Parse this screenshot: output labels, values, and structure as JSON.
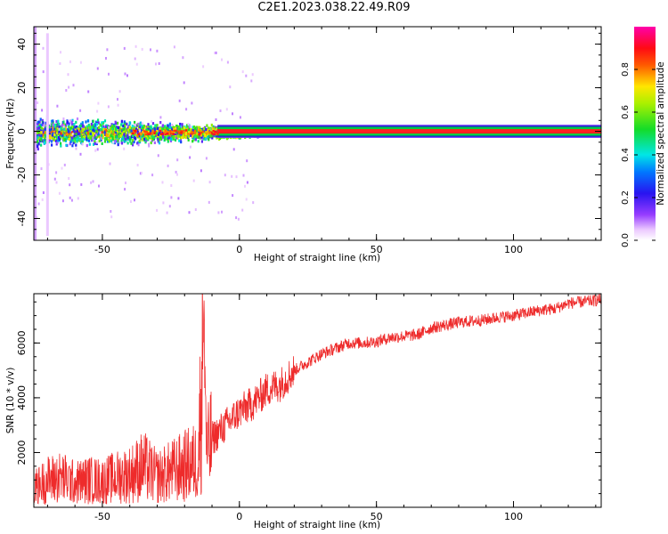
{
  "title": "C2E1.2023.038.22.49.R09",
  "colors": {
    "snr_line": "#ee2b2b",
    "signal_core": "#ff2020",
    "signal_band": "#00cc44"
  },
  "chart_data": [
    {
      "type": "heatmap",
      "name": "spectrogram",
      "xlabel": "Height of straight line (km)",
      "ylabel": "Frequency (Hz)",
      "xlim": [
        -75,
        132
      ],
      "ylim": [
        -50,
        48
      ],
      "xticks": [
        -50,
        0,
        50,
        100
      ],
      "yticks": [
        -40,
        -20,
        0,
        20,
        40
      ],
      "colorbar": {
        "label": "Normalized spectral amplitude",
        "range": [
          0,
          1
        ],
        "ticks": [
          "0.0",
          "0.2",
          "0.4",
          "0.6",
          "0.8"
        ],
        "colormap": "rainbow (white-magenta-blue-cyan-green-yellow-red-magenta)"
      },
      "signal": {
        "center_frequency_hz": 0,
        "core_width_hz": 2,
        "band_width_hz": 4,
        "scatter_region_km": [
          -75,
          12
        ],
        "scatter_spread_hz": [
          -12,
          12
        ]
      },
      "grid": false
    },
    {
      "type": "line",
      "name": "snr",
      "xlabel": "Height of straight line (km)",
      "ylabel": "SNR (10 * v/v)",
      "xlim": [
        -75,
        132
      ],
      "ylim": [
        0,
        7800
      ],
      "xticks": [
        -50,
        0,
        50,
        100
      ],
      "yticks": [
        2000,
        4000,
        6000
      ],
      "grid": false,
      "series": [
        {
          "x": [
            -75,
            -70,
            -65,
            -60,
            -55,
            -50,
            -45,
            -40,
            -35,
            -30,
            -25,
            -20,
            -15,
            -13,
            -12,
            -10,
            -5,
            0,
            5,
            10,
            15,
            20,
            25,
            30,
            35,
            40,
            45,
            50,
            55,
            60,
            65,
            70,
            75,
            80,
            85,
            90,
            95,
            100,
            105,
            110,
            115,
            120,
            125,
            130,
            132
          ],
          "values": [
            700,
            1000,
            1100,
            900,
            1000,
            950,
            1100,
            1200,
            1500,
            1100,
            1300,
            1500,
            1700,
            6500,
            1800,
            2500,
            3000,
            3500,
            3800,
            4300,
            4500,
            5000,
            5300,
            5600,
            5800,
            6000,
            6000,
            6050,
            6200,
            6250,
            6300,
            6550,
            6650,
            6750,
            6800,
            6850,
            6950,
            7000,
            7100,
            7200,
            7250,
            7450,
            7500,
            7550,
            7600
          ]
        }
      ]
    }
  ]
}
